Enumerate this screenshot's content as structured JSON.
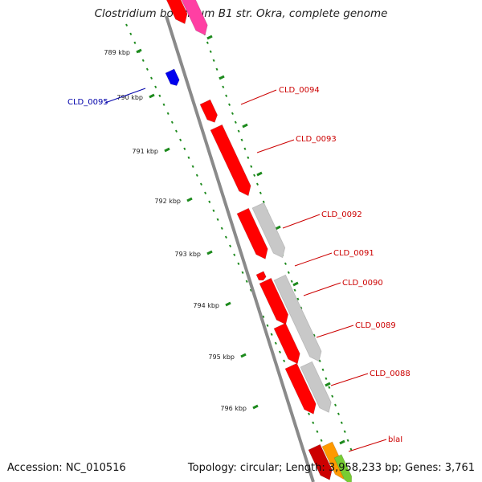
{
  "title": "Clostridium botulinum B1 str. Okra, complete genome",
  "accession_text": "Accession: NC_010516",
  "stats_text": "Topology: circular; Length: 3,958,233 bp; Genes: 3,761",
  "colors": {
    "backbone": "#8a8a8a",
    "gene_forward": "#ff0000",
    "gene_gray": "#c8c8c8",
    "gene_blue": "#0000ee",
    "gene_pink": "#ff3fa3",
    "tick_green": "#1d8a1d",
    "label_red": "#cc0000",
    "label_blue": "#0000aa",
    "orange": "#ff9900"
  },
  "scale_labels": [
    "789 kbp",
    "790 kbp",
    "791 kbp",
    "792 kbp",
    "793 kbp",
    "794 kbp",
    "795 kbp",
    "796 kbp"
  ],
  "gene_labels": [
    {
      "text": "CLD_0095",
      "color": "blue"
    },
    {
      "text": "CLD_0094",
      "color": "red"
    },
    {
      "text": "CLD_0093",
      "color": "red"
    },
    {
      "text": "CLD_0092",
      "color": "red"
    },
    {
      "text": "CLD_0091",
      "color": "red"
    },
    {
      "text": "CLD_0090",
      "color": "red"
    },
    {
      "text": "CLD_0089",
      "color": "red"
    },
    {
      "text": "CLD_0088",
      "color": "red"
    },
    {
      "text": "blaI",
      "color": "red"
    }
  ]
}
